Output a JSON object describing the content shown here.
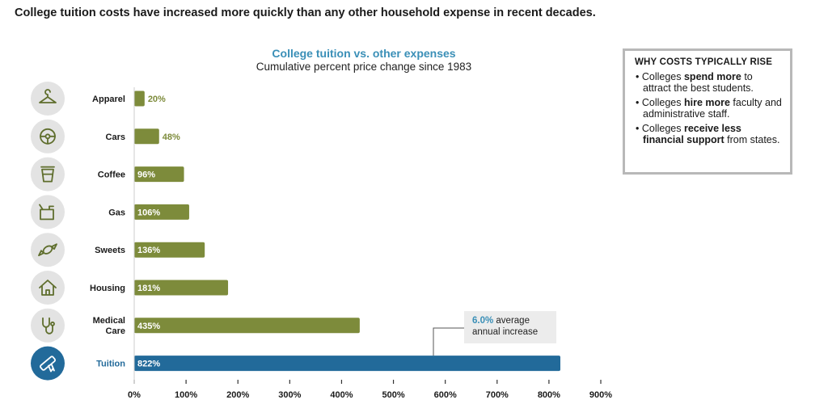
{
  "headline": "College tuition costs have increased more quickly than any other household expense in recent decades.",
  "chart_data": {
    "type": "bar",
    "orientation": "horizontal",
    "title": "College tuition vs. other expenses",
    "subtitle": "Cumulative percent price change since 1983",
    "categories": [
      "Apparel",
      "Cars",
      "Coffee",
      "Gas",
      "Sweets",
      "Housing",
      "Medical Care",
      "Tuition"
    ],
    "category_lines": [
      [
        "Apparel"
      ],
      [
        "Cars"
      ],
      [
        "Coffee"
      ],
      [
        "Gas"
      ],
      [
        "Sweets"
      ],
      [
        "Housing"
      ],
      [
        "Medical",
        "Care"
      ],
      [
        "Tuition"
      ]
    ],
    "icons": [
      "hanger-icon",
      "steering-wheel-icon",
      "coffee-cup-icon",
      "gas-can-icon",
      "candy-icon",
      "house-icon",
      "stethoscope-icon",
      "diploma-icon"
    ],
    "values": [
      20,
      48,
      96,
      106,
      136,
      181,
      435,
      822
    ],
    "value_labels": [
      "20%",
      "48%",
      "96%",
      "106%",
      "136%",
      "181%",
      "435%",
      "822%"
    ],
    "highlight_category": "Tuition",
    "xlim": [
      0,
      900
    ],
    "xticks": [
      0,
      100,
      200,
      300,
      400,
      500,
      600,
      700,
      800,
      900
    ],
    "xtick_labels": [
      "0%",
      "100%",
      "200%",
      "300%",
      "400%",
      "500%",
      "600%",
      "700%",
      "800%",
      "900%"
    ],
    "grid": false,
    "colors": {
      "bar": "#7d8b3b",
      "highlight_bar": "#226a9a",
      "icon_circle": "#e3e3e3",
      "icon_stroke": "#5f6e2d",
      "highlight_circle": "#226a9a",
      "title": "#3a8fb7"
    },
    "annotation": {
      "value": "6.0%",
      "text_line1": " average",
      "text_line2": "annual increase",
      "target": "Tuition"
    }
  },
  "sidebar": {
    "heading": "WHY COSTS TYPICALLY RISE",
    "items": [
      {
        "pre": "Colleges ",
        "bold": "spend more",
        "post": " to attract the best students."
      },
      {
        "pre": "Colleges ",
        "bold": "hire more",
        "post": " faculty and administrative staff."
      },
      {
        "pre": "Colleges ",
        "bold": "receive less financial support",
        "post": " from states."
      }
    ]
  }
}
